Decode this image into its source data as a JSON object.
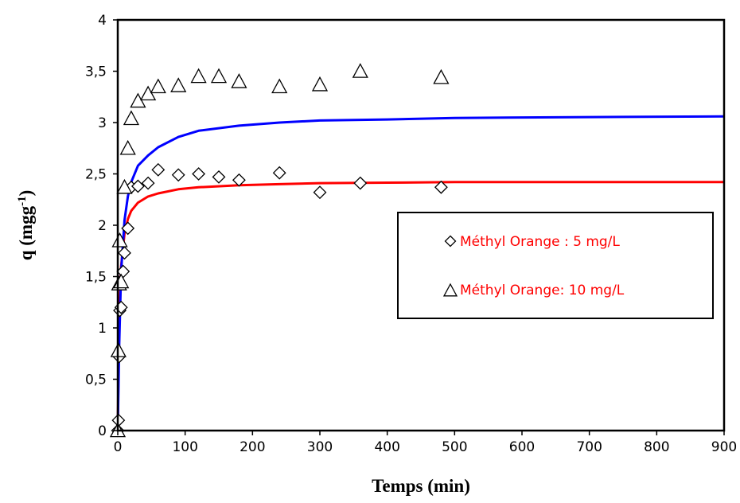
{
  "chart_data": {
    "type": "scatter",
    "title": "",
    "xlabel": "Temps (min)",
    "ylabel": "q (mgg",
    "ylabel_sup": "-1",
    "ylabel_close": ")",
    "xlim": [
      0,
      900
    ],
    "ylim": [
      0,
      4
    ],
    "x_ticks": [
      "0",
      "100",
      "200",
      "300",
      "400",
      "500",
      "600",
      "700",
      "800",
      "900"
    ],
    "x_tick_values": [
      0,
      100,
      200,
      300,
      400,
      500,
      600,
      700,
      800,
      900
    ],
    "y_ticks": [
      "0",
      "0,5",
      "1",
      "1,5",
      "2",
      "2,5",
      "3",
      "3,5",
      "4"
    ],
    "y_tick_values": [
      0,
      0.5,
      1,
      1.5,
      2,
      2.5,
      3,
      3.5,
      4
    ],
    "grid": false,
    "legend_position": "right",
    "series": [
      {
        "name": "Méthyl Orange : 5 mg/L",
        "marker": "diamond",
        "color": "#000000",
        "points": [
          {
            "x": 0,
            "y": 0
          },
          {
            "x": 1,
            "y": 0.1
          },
          {
            "x": 2,
            "y": 0.72
          },
          {
            "x": 3,
            "y": 1.17
          },
          {
            "x": 5,
            "y": 1.2
          },
          {
            "x": 8,
            "y": 1.55
          },
          {
            "x": 10,
            "y": 1.73
          },
          {
            "x": 15,
            "y": 1.97
          },
          {
            "x": 20,
            "y": 2.37
          },
          {
            "x": 30,
            "y": 2.38
          },
          {
            "x": 45,
            "y": 2.41
          },
          {
            "x": 60,
            "y": 2.54
          },
          {
            "x": 90,
            "y": 2.49
          },
          {
            "x": 120,
            "y": 2.5
          },
          {
            "x": 150,
            "y": 2.47
          },
          {
            "x": 180,
            "y": 2.44
          },
          {
            "x": 240,
            "y": 2.51
          },
          {
            "x": 300,
            "y": 2.32
          },
          {
            "x": 360,
            "y": 2.41
          },
          {
            "x": 480,
            "y": 2.37
          }
        ]
      },
      {
        "name": "Méthyl Orange: 10 mg/L",
        "marker": "triangle",
        "color": "#000000",
        "points": [
          {
            "x": 0,
            "y": 0
          },
          {
            "x": 1,
            "y": 0.78
          },
          {
            "x": 2,
            "y": 1.43
          },
          {
            "x": 3,
            "y": 1.85
          },
          {
            "x": 5,
            "y": 1.45
          },
          {
            "x": 10,
            "y": 2.37
          },
          {
            "x": 15,
            "y": 2.75
          },
          {
            "x": 20,
            "y": 3.04
          },
          {
            "x": 30,
            "y": 3.21
          },
          {
            "x": 45,
            "y": 3.28
          },
          {
            "x": 60,
            "y": 3.35
          },
          {
            "x": 90,
            "y": 3.36
          },
          {
            "x": 120,
            "y": 3.45
          },
          {
            "x": 150,
            "y": 3.45
          },
          {
            "x": 180,
            "y": 3.4
          },
          {
            "x": 240,
            "y": 3.35
          },
          {
            "x": 300,
            "y": 3.37
          },
          {
            "x": 360,
            "y": 3.5
          },
          {
            "x": 480,
            "y": 3.44
          }
        ]
      }
    ],
    "fit_curves": [
      {
        "color": "#ff0000",
        "points": [
          {
            "x": 0,
            "y": 0
          },
          {
            "x": 2,
            "y": 1.15
          },
          {
            "x": 5,
            "y": 1.6
          },
          {
            "x": 10,
            "y": 1.92
          },
          {
            "x": 15,
            "y": 2.06
          },
          {
            "x": 20,
            "y": 2.14
          },
          {
            "x": 30,
            "y": 2.22
          },
          {
            "x": 45,
            "y": 2.28
          },
          {
            "x": 60,
            "y": 2.31
          },
          {
            "x": 90,
            "y": 2.35
          },
          {
            "x": 120,
            "y": 2.37
          },
          {
            "x": 180,
            "y": 2.39
          },
          {
            "x": 240,
            "y": 2.4
          },
          {
            "x": 300,
            "y": 2.41
          },
          {
            "x": 400,
            "y": 2.415
          },
          {
            "x": 500,
            "y": 2.42
          },
          {
            "x": 600,
            "y": 2.42
          },
          {
            "x": 750,
            "y": 2.42
          },
          {
            "x": 900,
            "y": 2.42
          }
        ]
      },
      {
        "color": "#0000ff",
        "points": [
          {
            "x": 0,
            "y": 0
          },
          {
            "x": 2,
            "y": 0.8
          },
          {
            "x": 5,
            "y": 1.55
          },
          {
            "x": 10,
            "y": 2.05
          },
          {
            "x": 15,
            "y": 2.28
          },
          {
            "x": 20,
            "y": 2.42
          },
          {
            "x": 30,
            "y": 2.58
          },
          {
            "x": 45,
            "y": 2.68
          },
          {
            "x": 60,
            "y": 2.76
          },
          {
            "x": 90,
            "y": 2.86
          },
          {
            "x": 120,
            "y": 2.92
          },
          {
            "x": 180,
            "y": 2.97
          },
          {
            "x": 240,
            "y": 3.0
          },
          {
            "x": 300,
            "y": 3.02
          },
          {
            "x": 400,
            "y": 3.03
          },
          {
            "x": 500,
            "y": 3.045
          },
          {
            "x": 600,
            "y": 3.05
          },
          {
            "x": 750,
            "y": 3.055
          },
          {
            "x": 900,
            "y": 3.06
          }
        ]
      }
    ]
  }
}
